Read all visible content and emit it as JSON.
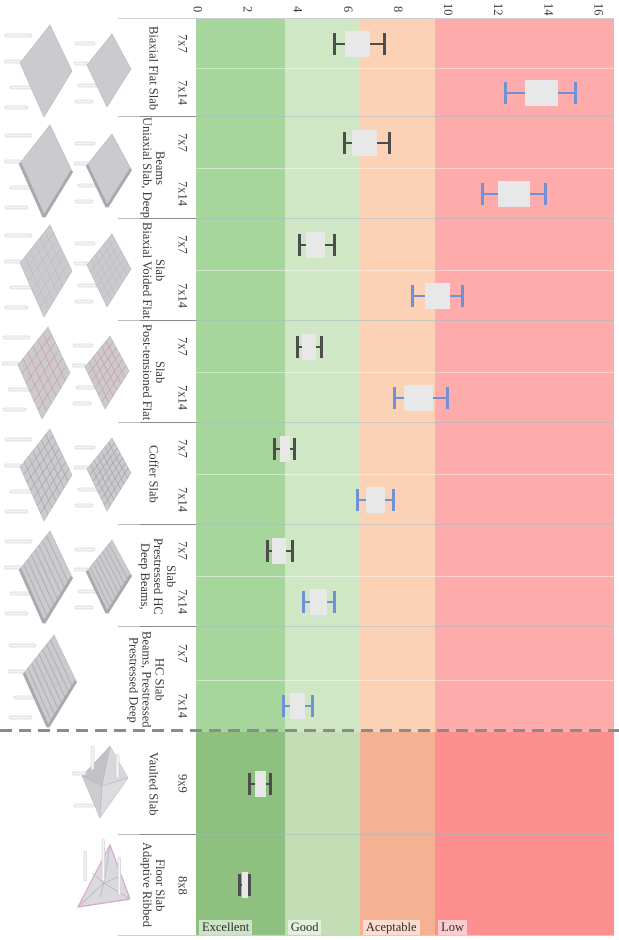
{
  "figure": {
    "box_fill": "#e8e8e8",
    "whisker_colors": {
      "dark": "#4d4d4d",
      "blue": "#7091d5"
    },
    "divider_color": "#8c8c8c",
    "zone_upper_colors": [
      "#a6d69b",
      "#cfe7c5",
      "#fbd2b5",
      "#fdabab"
    ],
    "zone_lower_colors": [
      "#8ec07f",
      "#c3ddb4",
      "#f5b293",
      "#fd8f8f"
    ],
    "zone_label_bg": "rgba(255,255,255,0.55)"
  },
  "chart_data": {
    "type": "boxplot",
    "orientation": "horizontal, figure rotated 90deg (labels vertical)",
    "value_axis": {
      "ticks": [
        0,
        2,
        4,
        6,
        8,
        10,
        12,
        14,
        16
      ],
      "min": 0,
      "max": 16.7,
      "grid": false
    },
    "zones": {
      "labels": [
        "Excellent",
        "Good",
        "Aceptable",
        "Low"
      ],
      "boundaries": [
        3.5,
        6.5,
        9.5
      ],
      "legend_position": "bottom inside plot"
    },
    "groups": [
      {
        "name": "Biaxial Flat Slab",
        "section": "upper",
        "render_style": "flat",
        "series": [
          {
            "span": "7x7",
            "whisker_low": 5.5,
            "box_low": 5.9,
            "box_high": 6.9,
            "whisker_high": 7.5,
            "color": "dark"
          },
          {
            "span": "7x14",
            "whisker_low": 12.3,
            "box_low": 13.1,
            "box_high": 14.4,
            "whisker_high": 15.1,
            "color": "blue"
          }
        ]
      },
      {
        "name": "Uniaxial Slab, Deep\nBeams",
        "section": "upper",
        "render_style": "deep-beams",
        "series": [
          {
            "span": "7x7",
            "whisker_low": 5.9,
            "box_low": 6.2,
            "box_high": 7.2,
            "whisker_high": 7.7,
            "color": "dark"
          },
          {
            "span": "7x14",
            "whisker_low": 11.4,
            "box_low": 12.0,
            "box_high": 13.3,
            "whisker_high": 13.9,
            "color": "blue"
          }
        ]
      },
      {
        "name": "Biaxial Voided Flat\nSlab",
        "section": "upper",
        "render_style": "voided",
        "series": [
          {
            "span": "7x7",
            "whisker_low": 4.1,
            "box_low": 4.35,
            "box_high": 5.1,
            "whisker_high": 5.5,
            "color": "dark"
          },
          {
            "span": "7x14",
            "whisker_low": 8.6,
            "box_low": 9.1,
            "box_high": 10.1,
            "whisker_high": 10.6,
            "color": "blue"
          }
        ]
      },
      {
        "name": "Post-tensioned Flat\nSlab",
        "section": "upper",
        "render_style": "tendons",
        "series": [
          {
            "span": "7x7",
            "whisker_low": 4.0,
            "box_low": 4.2,
            "box_high": 4.75,
            "whisker_high": 4.95,
            "color": "dark"
          },
          {
            "span": "7x14",
            "whisker_low": 7.9,
            "box_low": 8.25,
            "box_high": 9.4,
            "whisker_high": 10.0,
            "color": "blue"
          }
        ]
      },
      {
        "name": "Coffer Slab",
        "section": "upper",
        "render_style": "coffer",
        "series": [
          {
            "span": "7x7",
            "whisker_low": 3.1,
            "box_low": 3.3,
            "box_high": 3.7,
            "whisker_high": 3.9,
            "color": "dark"
          },
          {
            "span": "7x14",
            "whisker_low": 6.4,
            "box_low": 6.75,
            "box_high": 7.5,
            "whisker_high": 7.85,
            "color": "blue"
          }
        ]
      },
      {
        "name": "Deep Beams,\nPrestressed HC Slab",
        "section": "upper",
        "render_style": "hc",
        "series": [
          {
            "span": "7x7",
            "whisker_low": 2.8,
            "box_low": 3.0,
            "box_high": 3.55,
            "whisker_high": 3.8,
            "color": "dark"
          },
          {
            "span": "7x14",
            "whisker_low": 4.25,
            "box_low": 4.5,
            "box_high": 5.2,
            "whisker_high": 5.5,
            "color": "blue"
          }
        ]
      },
      {
        "name": "Prestressed Deep\nBeams, Prestressed\nHC Slab",
        "section": "upper",
        "render_style": "hc",
        "series": [
          {
            "span": "7x7",
            "whisker_low": null,
            "box_low": null,
            "box_high": null,
            "whisker_high": null,
            "color": "dark"
          },
          {
            "span": "7x14",
            "whisker_low": 3.45,
            "box_low": 3.7,
            "box_high": 4.3,
            "whisker_high": 4.6,
            "color": "blue"
          }
        ]
      },
      {
        "name": "Vaulted Slab",
        "section": "lower",
        "render_style": "vaulted",
        "series": [
          {
            "span": "9x9",
            "whisker_low": 2.1,
            "box_low": 2.3,
            "box_high": 2.75,
            "whisker_high": 2.95,
            "color": "dark"
          }
        ]
      },
      {
        "name": "Adaptive Ribbed\nFloor Slab",
        "section": "lower",
        "render_style": "ribbed",
        "series": [
          {
            "span": "8x8",
            "whisker_low": 1.7,
            "box_low": 1.78,
            "box_high": 2.05,
            "whisker_high": 2.1,
            "color": "dark"
          }
        ]
      }
    ]
  }
}
